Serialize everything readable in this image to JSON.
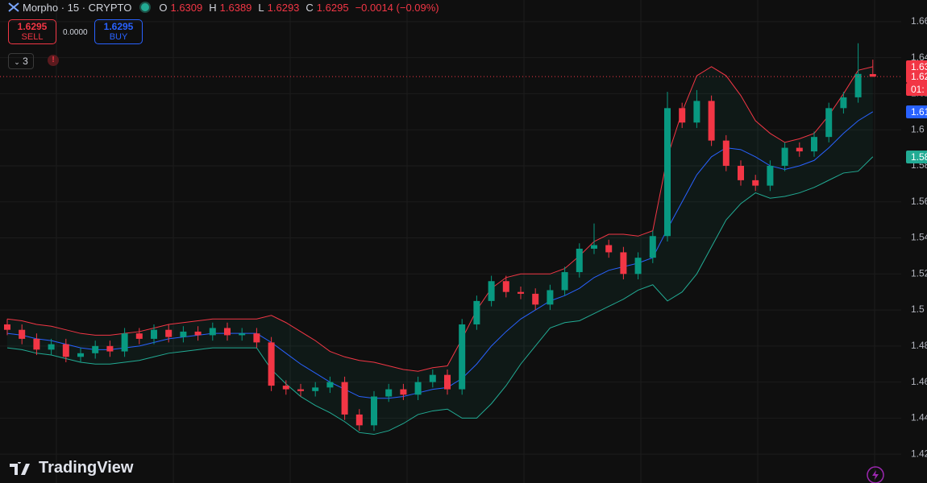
{
  "header": {
    "symbol": "Morpho · 15 · CRYPTO",
    "o_label": "O",
    "h_label": "H",
    "l_label": "L",
    "c_label": "C",
    "change": "−0.0014 (−0.09%)"
  },
  "trade_panel": {
    "sell_price": "1.6295",
    "sell_label": "SELL",
    "spread": "0.0000",
    "buy_price": "1.6295",
    "buy_label": "BUY"
  },
  "indicators_count": "3",
  "countdown": "01:",
  "brand": "TradingView",
  "chart_data": {
    "type": "candlestick",
    "open": [
      1.492,
      1.489,
      1.484,
      1.478,
      1.481,
      1.474,
      1.476,
      1.48,
      1.477,
      1.487,
      1.484,
      1.489,
      1.485,
      1.488,
      1.486,
      1.49,
      1.486,
      1.487,
      1.482,
      1.458,
      1.456,
      1.455,
      1.457,
      1.46,
      1.442,
      1.436,
      1.452,
      1.456,
      1.453,
      1.46,
      1.464,
      1.456,
      1.492,
      1.505,
      1.516,
      1.51,
      1.509,
      1.503,
      1.511,
      1.521,
      1.534,
      1.536,
      1.532,
      1.52,
      1.529,
      1.541,
      1.612,
      1.604,
      1.616,
      1.594,
      1.58,
      1.572,
      1.569,
      1.58,
      1.59,
      1.588,
      1.596,
      1.612,
      1.618,
      1.6309
    ],
    "high": [
      1.495,
      1.492,
      1.487,
      1.484,
      1.484,
      1.479,
      1.483,
      1.483,
      1.49,
      1.49,
      1.492,
      1.492,
      1.491,
      1.491,
      1.493,
      1.493,
      1.49,
      1.49,
      1.485,
      1.461,
      1.459,
      1.46,
      1.463,
      1.463,
      1.445,
      1.455,
      1.459,
      1.459,
      1.463,
      1.467,
      1.467,
      1.495,
      1.508,
      1.519,
      1.519,
      1.513,
      1.512,
      1.514,
      1.524,
      1.537,
      1.548,
      1.539,
      1.535,
      1.532,
      1.544,
      1.621,
      1.615,
      1.622,
      1.619,
      1.597,
      1.583,
      1.575,
      1.583,
      1.593,
      1.593,
      1.599,
      1.615,
      1.621,
      1.648,
      1.6389
    ],
    "low": [
      1.486,
      1.481,
      1.475,
      1.475,
      1.471,
      1.471,
      1.473,
      1.474,
      1.474,
      1.481,
      1.481,
      1.482,
      1.482,
      1.483,
      1.483,
      1.483,
      1.483,
      1.479,
      1.455,
      1.453,
      1.452,
      1.452,
      1.454,
      1.439,
      1.433,
      1.433,
      1.449,
      1.45,
      1.45,
      1.457,
      1.453,
      1.453,
      1.489,
      1.502,
      1.507,
      1.506,
      1.5,
      1.5,
      1.508,
      1.518,
      1.531,
      1.529,
      1.517,
      1.517,
      1.526,
      1.538,
      1.601,
      1.601,
      1.591,
      1.577,
      1.569,
      1.566,
      1.566,
      1.577,
      1.585,
      1.585,
      1.593,
      1.609,
      1.615,
      1.6293
    ],
    "close": [
      1.489,
      1.484,
      1.478,
      1.481,
      1.474,
      1.476,
      1.48,
      1.477,
      1.487,
      1.484,
      1.489,
      1.485,
      1.488,
      1.486,
      1.49,
      1.486,
      1.487,
      1.482,
      1.458,
      1.456,
      1.455,
      1.457,
      1.46,
      1.442,
      1.436,
      1.452,
      1.456,
      1.453,
      1.46,
      1.464,
      1.456,
      1.492,
      1.505,
      1.516,
      1.51,
      1.509,
      1.503,
      1.511,
      1.521,
      1.534,
      1.536,
      1.532,
      1.52,
      1.529,
      1.541,
      1.612,
      1.604,
      1.616,
      1.594,
      1.58,
      1.572,
      1.569,
      1.58,
      1.59,
      1.588,
      1.596,
      1.612,
      1.618,
      1.631,
      1.6295
    ],
    "bb_upper": [
      1.495,
      1.494,
      1.492,
      1.491,
      1.489,
      1.487,
      1.486,
      1.486,
      1.487,
      1.488,
      1.49,
      1.492,
      1.493,
      1.494,
      1.495,
      1.495,
      1.495,
      1.495,
      1.497,
      1.493,
      1.488,
      1.483,
      1.477,
      1.474,
      1.472,
      1.471,
      1.469,
      1.467,
      1.466,
      1.468,
      1.469,
      1.484,
      1.5,
      1.512,
      1.518,
      1.52,
      1.52,
      1.52,
      1.523,
      1.53,
      1.538,
      1.542,
      1.542,
      1.541,
      1.544,
      1.585,
      1.61,
      1.63,
      1.635,
      1.63,
      1.619,
      1.605,
      1.598,
      1.593,
      1.595,
      1.598,
      1.608,
      1.62,
      1.633,
      1.635
    ],
    "bb_basis": [
      1.487,
      1.486,
      1.484,
      1.483,
      1.481,
      1.479,
      1.478,
      1.478,
      1.479,
      1.48,
      1.482,
      1.484,
      1.485,
      1.486,
      1.487,
      1.487,
      1.487,
      1.487,
      1.482,
      1.476,
      1.47,
      1.465,
      1.46,
      1.456,
      1.452,
      1.451,
      1.451,
      1.452,
      1.454,
      1.456,
      1.457,
      1.462,
      1.47,
      1.48,
      1.488,
      1.495,
      1.5,
      1.505,
      1.508,
      1.512,
      1.518,
      1.522,
      1.524,
      1.526,
      1.529,
      1.545,
      1.56,
      1.575,
      1.585,
      1.59,
      1.589,
      1.585,
      1.58,
      1.578,
      1.58,
      1.583,
      1.59,
      1.598,
      1.605,
      1.61
    ],
    "bb_lower": [
      1.479,
      1.478,
      1.476,
      1.475,
      1.473,
      1.471,
      1.47,
      1.47,
      1.471,
      1.472,
      1.474,
      1.476,
      1.477,
      1.478,
      1.479,
      1.479,
      1.479,
      1.479,
      1.467,
      1.459,
      1.452,
      1.447,
      1.443,
      1.438,
      1.432,
      1.431,
      1.433,
      1.437,
      1.442,
      1.444,
      1.445,
      1.44,
      1.44,
      1.448,
      1.458,
      1.47,
      1.48,
      1.49,
      1.493,
      1.494,
      1.498,
      1.502,
      1.506,
      1.511,
      1.514,
      1.505,
      1.51,
      1.52,
      1.535,
      1.55,
      1.559,
      1.565,
      1.562,
      1.563,
      1.565,
      1.568,
      1.572,
      1.576,
      1.577,
      1.585
    ],
    "up_color": "#089981",
    "down_color": "#f23645",
    "upper_color": "#f23645",
    "basis_color": "#2962ff",
    "lower_color": "#22ab94",
    "ylim": [
      1.404,
      1.672
    ],
    "yticks": [
      1.42,
      1.44,
      1.46,
      1.48,
      1.5,
      1.52,
      1.54,
      1.56,
      1.58,
      1.6,
      1.62,
      1.64,
      1.66
    ],
    "grid": true
  }
}
